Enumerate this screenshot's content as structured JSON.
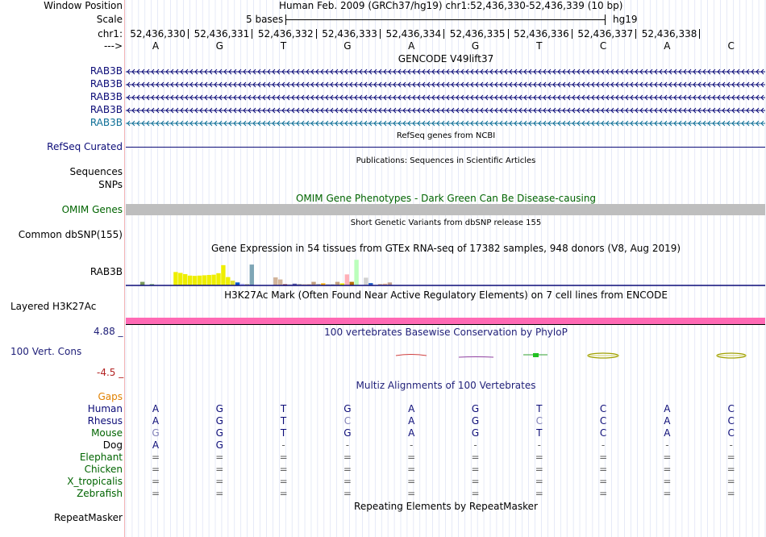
{
  "header": {
    "window_position_label": "Window Position",
    "window_position_value": "Human Feb. 2009 (GRCh37/hg19)   chr1:52,436,330-52,436,339 (10 bp)",
    "scale_label": "Scale",
    "scale_value": "5 bases",
    "scale_db": "hg19",
    "chrom_label": "chr1:",
    "strand_label": "--->",
    "positions": [
      "52,436,330",
      "52,436,331",
      "52,436,332",
      "52,436,333",
      "52,436,334",
      "52,436,335",
      "52,436,336",
      "52,436,337",
      "52,436,338"
    ],
    "bases": [
      "A",
      "G",
      "T",
      "G",
      "A",
      "G",
      "T",
      "C",
      "A",
      "C"
    ]
  },
  "gencode": {
    "title": "GENCODE V49lift37",
    "transcripts": [
      "RAB3B",
      "RAB3B",
      "RAB3B",
      "RAB3B",
      "RAB3B"
    ]
  },
  "refseq": {
    "title": "RefSeq genes from NCBI",
    "label": "RefSeq Curated"
  },
  "publications": {
    "title": "Publications: Sequences in Scientific Articles",
    "label_sequences": "Sequences",
    "label_snps": "SNPs"
  },
  "omim": {
    "title": "OMIM Gene Phenotypes - Dark Green Can Be Disease-causing",
    "label": "OMIM Genes"
  },
  "dbsnp": {
    "title": "Short Genetic Variants from dbSNP release 155",
    "label": "Common dbSNP(155)"
  },
  "gtex": {
    "title": "Gene Expression in 54 tissues from GTEx RNA-seq of 17382 samples, 948 donors (V8, Aug 2019)",
    "label": "RAB3B",
    "bars": [
      0.0,
      0.12,
      0.0,
      0.05,
      0.0,
      0.0,
      0.0,
      0.0,
      0.45,
      0.42,
      0.38,
      0.33,
      0.32,
      0.33,
      0.34,
      0.35,
      0.36,
      0.41,
      0.68,
      0.28,
      0.16,
      0.1,
      0.06,
      0.05,
      0.7,
      0.0,
      0.0,
      0.0,
      0.0,
      0.27,
      0.2,
      0.04,
      0.04,
      0.06,
      0.05,
      0.04,
      0.04,
      0.12,
      0.05,
      0.07,
      0.04,
      0.04,
      0.12,
      0.07,
      0.37,
      0.12,
      0.86,
      0.0,
      0.26,
      0.08,
      0.0,
      0.05,
      0.06,
      0.1
    ],
    "colors": [
      "#ffaa00",
      "#7a9a5c",
      "#ffaa00",
      "#8db88d",
      "#aaaaaa",
      "#aaaaaa",
      "#aaaaaa",
      "#aaaaaa",
      "#eeee00",
      "#eeee00",
      "#eeee00",
      "#eeee00",
      "#eeee00",
      "#eeee00",
      "#eeee00",
      "#eeee00",
      "#eeee00",
      "#eeee00",
      "#eeee00",
      "#eeee00",
      "#dddd33",
      "#0055cc",
      "#c2c2ff",
      "#bbbbaa",
      "#7fa6b6",
      "#aaaaaa",
      "#aaaaaa",
      "#aaaaaa",
      "#aaaaaa",
      "#d2b49a",
      "#d2b49a",
      "#8a2f38",
      "#c9c9c9",
      "#5c5caa",
      "#aaaaaa",
      "#d2b49a",
      "#c2a080",
      "#c2a080",
      "#aaaaaa",
      "#ffaa00",
      "#b4b4b4",
      "#aaaaaa",
      "#c2a080",
      "#eeee00",
      "#ffb0b8",
      "#b46c00",
      "#bbffbb",
      "#aaaaaa",
      "#d0d0d0",
      "#2c64c8",
      "#3c3caa",
      "#d2b49a",
      "#e6b496",
      "#c0a090"
    ]
  },
  "h3k27ac": {
    "title": "H3K27Ac Mark (Often Found Near Active Regulatory Elements) on 7 cell lines from ENCODE",
    "label": "Layered H3K27Ac"
  },
  "phylop": {
    "title": "100 vertebrates Basewise Conservation by PhyloP",
    "label": "100 Vert. Cons",
    "max_label": "4.88 _",
    "min_label": "-4.5 _"
  },
  "multiz": {
    "title": "Multiz Alignments of 100 Vertebrates",
    "gaps_label": "Gaps",
    "species": [
      {
        "name": "Human",
        "bases": [
          "A",
          "G",
          "T",
          "G",
          "A",
          "G",
          "T",
          "C",
          "A",
          "C"
        ]
      },
      {
        "name": "Rhesus",
        "bases": [
          "A",
          "G",
          "T",
          "C",
          "A",
          "G",
          "C",
          "C",
          "A",
          "C"
        ]
      },
      {
        "name": "Mouse",
        "bases": [
          "G",
          "G",
          "T",
          "G",
          "A",
          "G",
          "T",
          "C",
          "A",
          "C"
        ]
      },
      {
        "name": "Dog",
        "bases": [
          "A",
          "G",
          "-",
          "-",
          "-",
          "-",
          "-",
          "-",
          "-",
          "-"
        ]
      },
      {
        "name": "Elephant",
        "bases": [
          "=",
          "=",
          "=",
          "=",
          "=",
          "=",
          "=",
          "=",
          "=",
          "="
        ]
      },
      {
        "name": "Chicken",
        "bases": [
          "=",
          "=",
          "=",
          "=",
          "=",
          "=",
          "=",
          "=",
          "=",
          "="
        ]
      },
      {
        "name": "X_tropicalis",
        "bases": [
          "=",
          "=",
          "=",
          "=",
          "=",
          "=",
          "=",
          "=",
          "=",
          "="
        ]
      },
      {
        "name": "Zebrafish",
        "bases": [
          "=",
          "=",
          "=",
          "=",
          "=",
          "=",
          "=",
          "=",
          "=",
          "="
        ]
      }
    ]
  },
  "repeatmasker": {
    "title": "Repeating Elements by RepeatMasker",
    "label": "RepeatMasker"
  },
  "colors": {
    "gene_navy": "#0c0c78",
    "gene_teal": "#0c6e96",
    "omim_green": "#006400",
    "omim_bar": "#bebebe",
    "h3k27ac_pink": "#ff69b4",
    "phylop_blue": "#1e1e78",
    "phylop_max": "#1e1e78",
    "phylop_min": "#b22222",
    "gaps_orange": "#e08000",
    "species_navy": "#0c0c78",
    "species_green": "#006400"
  }
}
